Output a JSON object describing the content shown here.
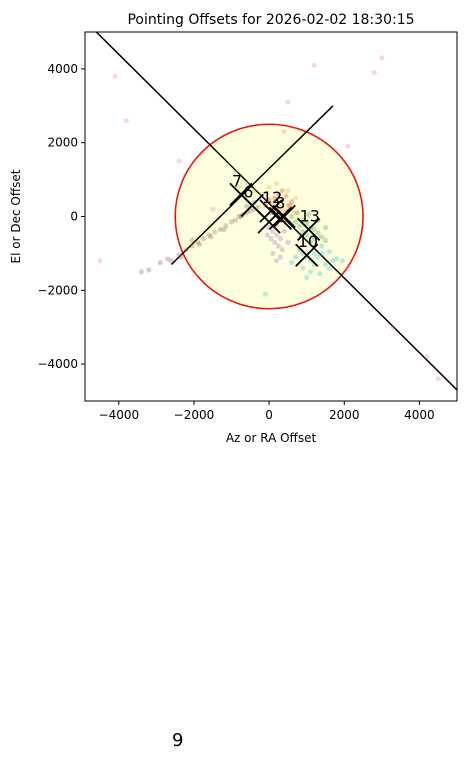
{
  "chart_data": {
    "type": "scatter",
    "title": "Pointing Offsets for 2026-02-02 18:30:15",
    "xlabel": "Az or RA Offset",
    "ylabel": "El or Dec Offset",
    "xlim": [
      -4900,
      5000
    ],
    "ylim": [
      -5000,
      5000
    ],
    "xticks": [
      -4000,
      -2000,
      0,
      2000,
      4000
    ],
    "yticks": [
      -4000,
      -2000,
      0,
      2000,
      4000
    ],
    "xtick_labels": [
      "−4000",
      "−2000",
      "0",
      "2000",
      "4000"
    ],
    "ytick_labels": [
      "−4000",
      "−2000",
      "0",
      "2000",
      "4000"
    ],
    "grid": false,
    "tolerance_circle": {
      "center": [
        0,
        0
      ],
      "radius": 2500,
      "fill": "#ffffe0",
      "stroke": "#e8180f"
    },
    "reference_lines": [
      {
        "from": [
          -4600,
          5000
        ],
        "to": [
          5000,
          -4700
        ],
        "color": "#000000"
      },
      {
        "from": [
          -2600,
          -1300
        ],
        "to": [
          1700,
          3000
        ],
        "color": "#000000"
      }
    ],
    "series": [
      {
        "color": "#8c564b",
        "center": [
          -500,
          0
        ],
        "points": [
          [
            -2600,
            -1200
          ],
          [
            -2400,
            -1050
          ],
          [
            -2200,
            -900
          ],
          [
            -2050,
            -800
          ],
          [
            -1900,
            -700
          ],
          [
            -1750,
            -600
          ],
          [
            -1600,
            -500
          ],
          [
            -1450,
            -420
          ],
          [
            -1300,
            -350
          ],
          [
            -1150,
            -250
          ],
          [
            -1000,
            -150
          ],
          [
            -900,
            -100
          ],
          [
            -800,
            0
          ],
          [
            -700,
            50
          ],
          [
            -600,
            100
          ],
          [
            -500,
            150
          ],
          [
            -400,
            200
          ],
          [
            -300,
            250
          ],
          [
            -2900,
            -1250
          ],
          [
            -3200,
            -1450
          ],
          [
            -3400,
            -1500
          ],
          [
            -2350,
            -1100
          ],
          [
            -1850,
            -750
          ],
          [
            -1550,
            -550
          ],
          [
            -1200,
            -350
          ],
          [
            -750,
            0
          ],
          [
            -2050,
            -650
          ],
          [
            -2700,
            -1150
          ],
          [
            -600,
            280
          ],
          [
            -400,
            380
          ]
        ]
      },
      {
        "color": "#d62728",
        "center": [
          100,
          300
        ],
        "points": [
          [
            0,
            450
          ],
          [
            150,
            500
          ],
          [
            250,
            600
          ],
          [
            350,
            700
          ],
          [
            450,
            550
          ],
          [
            550,
            300
          ],
          [
            150,
            200
          ],
          [
            50,
            100
          ],
          [
            300,
            0
          ],
          [
            400,
            -100
          ],
          [
            200,
            -200
          ],
          [
            500,
            150
          ],
          [
            -100,
            300
          ],
          [
            600,
            400
          ]
        ]
      },
      {
        "color": "#2ca02c",
        "center": [
          1100,
          -400
        ],
        "points": [
          [
            900,
            -100
          ],
          [
            1000,
            -200
          ],
          [
            1100,
            -300
          ],
          [
            1200,
            -350
          ],
          [
            1300,
            -450
          ],
          [
            1400,
            -550
          ],
          [
            800,
            -250
          ],
          [
            700,
            -150
          ],
          [
            1000,
            -500
          ],
          [
            1200,
            -600
          ],
          [
            1500,
            -300
          ],
          [
            1300,
            -100
          ],
          [
            600,
            0
          ],
          [
            900,
            -400
          ],
          [
            1100,
            -700
          ],
          [
            1500,
            -650
          ],
          [
            750,
            100
          ],
          [
            1050,
            50
          ]
        ]
      },
      {
        "color": "#17becf",
        "center": [
          1000,
          -1100
        ],
        "points": [
          [
            800,
            -900
          ],
          [
            900,
            -1000
          ],
          [
            1000,
            -1100
          ],
          [
            1100,
            -1200
          ],
          [
            1200,
            -1300
          ],
          [
            1300,
            -1100
          ],
          [
            1400,
            -1000
          ],
          [
            1500,
            -1300
          ],
          [
            1600,
            -1400
          ],
          [
            1700,
            -1200
          ],
          [
            1100,
            -1500
          ],
          [
            900,
            -1400
          ],
          [
            700,
            -1100
          ],
          [
            1200,
            -1000
          ],
          [
            1800,
            -1150
          ],
          [
            -100,
            -2100
          ],
          [
            1000,
            -1650
          ],
          [
            1350,
            -1550
          ],
          [
            600,
            -1250
          ],
          [
            1400,
            -800
          ],
          [
            1600,
            -950
          ],
          [
            1950,
            -1200
          ]
        ]
      },
      {
        "color": "#9467bd",
        "center": [
          200,
          -500
        ],
        "points": [
          [
            100,
            -400
          ],
          [
            200,
            -500
          ],
          [
            300,
            -600
          ],
          [
            150,
            -700
          ],
          [
            250,
            -800
          ],
          [
            350,
            -900
          ],
          [
            50,
            -600
          ],
          [
            0,
            -300
          ],
          [
            -50,
            -500
          ],
          [
            400,
            -400
          ],
          [
            300,
            -1100
          ],
          [
            200,
            -1200
          ],
          [
            100,
            -1000
          ],
          [
            500,
            -700
          ]
        ]
      },
      {
        "color": "#ff7f0e",
        "center": [
          300,
          200
        ],
        "points": [
          [
            200,
            100
          ],
          [
            400,
            150
          ],
          [
            300,
            250
          ],
          [
            500,
            300
          ],
          [
            100,
            350
          ],
          [
            600,
            200
          ],
          [
            700,
            100
          ],
          [
            350,
            -50
          ]
        ]
      },
      {
        "color": "#e377c2",
        "center": [
          0,
          0
        ],
        "points": [
          [
            -4100,
            3800
          ],
          [
            -3800,
            2600
          ],
          [
            -2400,
            1500
          ],
          [
            -1500,
            200
          ],
          [
            1200,
            4100
          ],
          [
            2800,
            3900
          ],
          [
            3000,
            4300
          ],
          [
            500,
            3100
          ],
          [
            2100,
            -1400
          ],
          [
            3300,
            -3000
          ],
          [
            4200,
            -3800
          ],
          [
            4500,
            -4400
          ],
          [
            -4500,
            -1200
          ],
          [
            2100,
            1900
          ],
          [
            400,
            2300
          ]
        ]
      },
      {
        "color": "#bcbd22",
        "center": [
          0,
          0
        ],
        "points": [
          [
            -1100,
            1400
          ],
          [
            -900,
            1200
          ],
          [
            -600,
            900
          ],
          [
            -400,
            700
          ],
          [
            -200,
            600
          ],
          [
            0,
            800
          ],
          [
            200,
            900
          ],
          [
            500,
            700
          ],
          [
            700,
            500
          ],
          [
            -800,
            800
          ]
        ]
      }
    ],
    "markers": [
      {
        "label": "7",
        "x": -750,
        "y": 600
      },
      {
        "label": "6",
        "x": -450,
        "y": 300
      },
      {
        "label": "12",
        "x": 50,
        "y": 150
      },
      {
        "label": "8",
        "x": 400,
        "y": 0
      },
      {
        "label": "13",
        "x": 1050,
        "y": -350
      },
      {
        "label": "10",
        "x": 1000,
        "y": -1050
      }
    ],
    "extra_crosses": [
      {
        "x": 0,
        "y": -150
      },
      {
        "x": 300,
        "y": -50
      }
    ]
  },
  "page_number": "9"
}
